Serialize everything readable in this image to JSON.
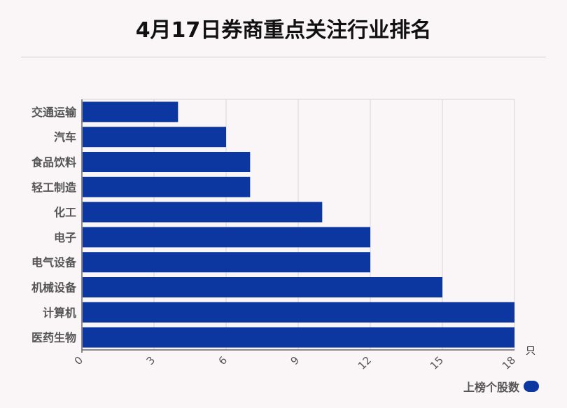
{
  "title": "4月17日券商重点关注行业排名",
  "legend": {
    "label": "上榜个股数"
  },
  "colors": {
    "bar": "#0c36a0",
    "grid": "#d4d4d4",
    "axis": "#666666"
  },
  "chart_data": {
    "type": "bar",
    "orientation": "horizontal",
    "title": "4月17日券商重点关注行业排名",
    "categories": [
      "交通运输",
      "汽车",
      "食品饮料",
      "轻工制造",
      "化工",
      "电子",
      "电气设备",
      "机械设备",
      "计算机",
      "医药生物"
    ],
    "series": [
      {
        "name": "上榜个股数",
        "values": [
          4,
          6,
          7,
          7,
          10,
          12,
          12,
          15,
          18,
          18
        ]
      }
    ],
    "xlim": [
      0,
      18
    ],
    "xticks": [
      0,
      3,
      6,
      9,
      12,
      15,
      18
    ],
    "xunit": "只",
    "grid": true,
    "legend_position": "bottom-right"
  }
}
